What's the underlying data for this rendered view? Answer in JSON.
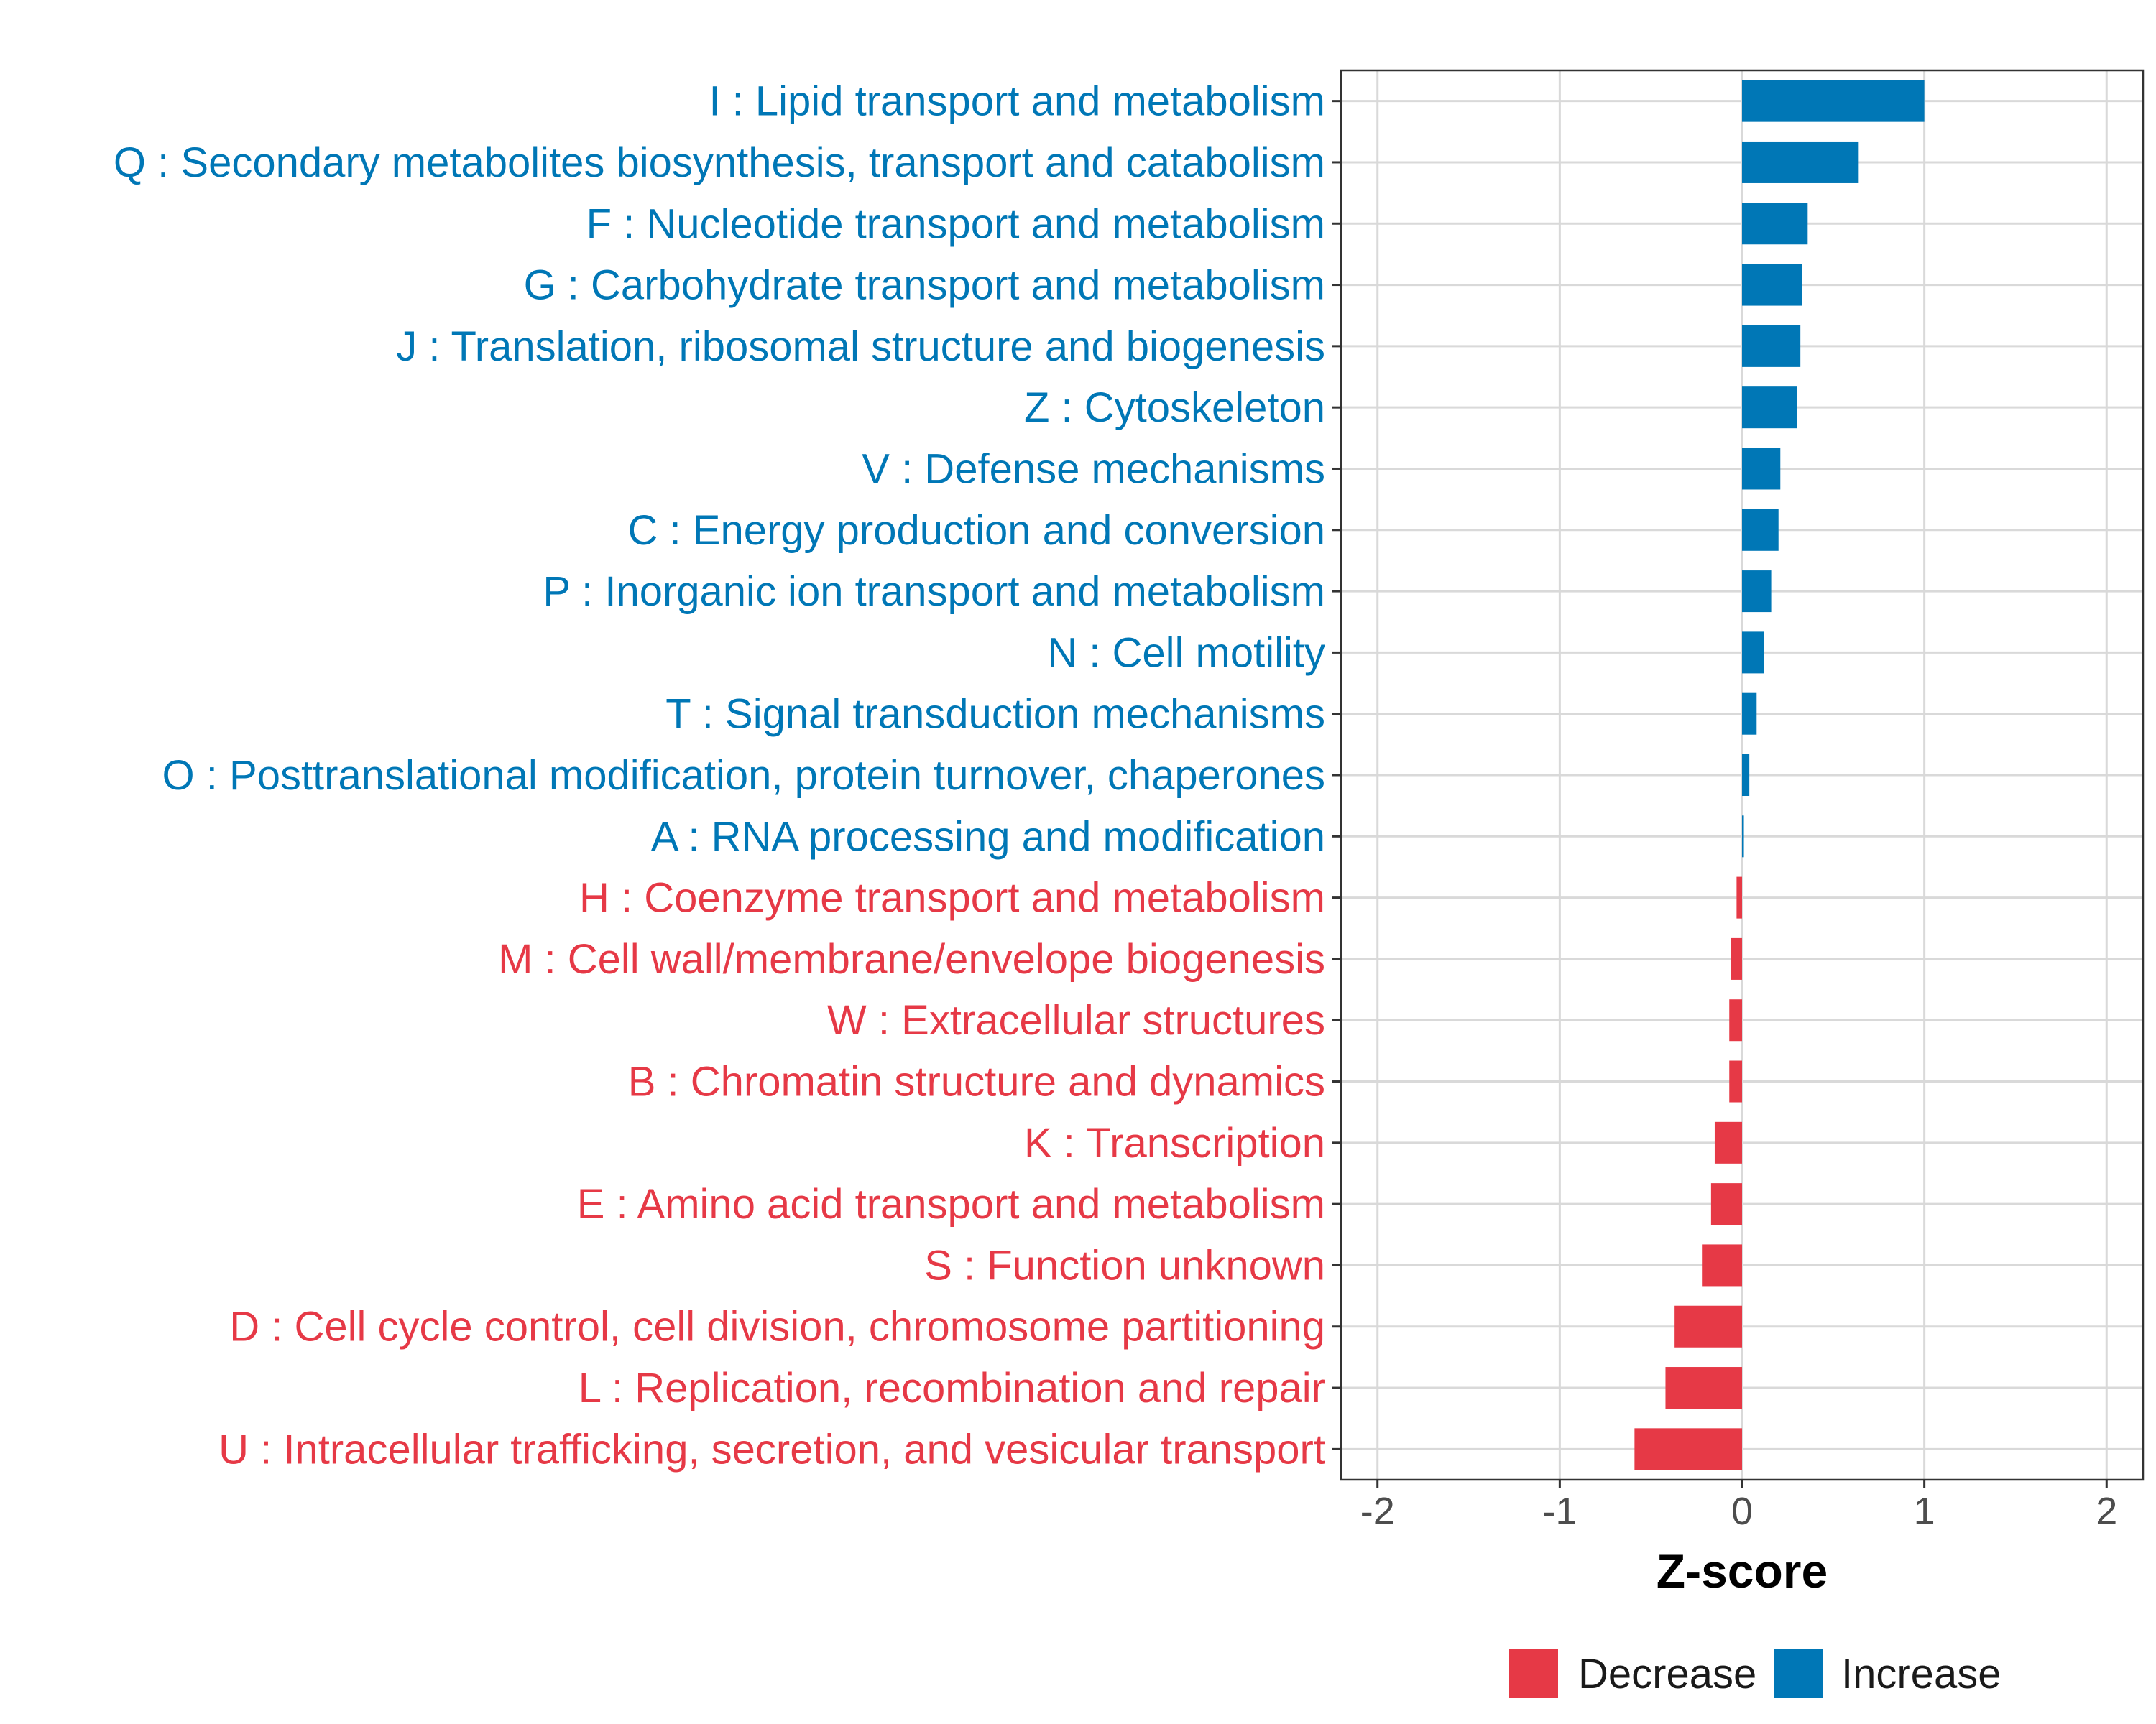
{
  "chart_data": {
    "type": "bar",
    "orientation": "horizontal",
    "xlabel": "Z-score",
    "xlim": [
      -2.2,
      2.2
    ],
    "xticks": [
      -2,
      -1,
      0,
      1,
      2
    ],
    "grid": true,
    "colors": {
      "Decrease": "#E63946",
      "Increase": "#0077B6"
    },
    "categories": [
      {
        "label": "I : Lipid transport and metabolism",
        "value": 1.0,
        "group": "Increase"
      },
      {
        "label": "Q : Secondary metabolites biosynthesis, transport and catabolism",
        "value": 0.64,
        "group": "Increase"
      },
      {
        "label": "F : Nucleotide transport and metabolism",
        "value": 0.36,
        "group": "Increase"
      },
      {
        "label": "G : Carbohydrate transport and metabolism",
        "value": 0.33,
        "group": "Increase"
      },
      {
        "label": "J : Translation, ribosomal structure and biogenesis",
        "value": 0.32,
        "group": "Increase"
      },
      {
        "label": "Z : Cytoskeleton",
        "value": 0.3,
        "group": "Increase"
      },
      {
        "label": "V : Defense mechanisms",
        "value": 0.21,
        "group": "Increase"
      },
      {
        "label": "C : Energy production and conversion",
        "value": 0.2,
        "group": "Increase"
      },
      {
        "label": "P : Inorganic ion transport and metabolism",
        "value": 0.16,
        "group": "Increase"
      },
      {
        "label": "N : Cell motility",
        "value": 0.12,
        "group": "Increase"
      },
      {
        "label": "T : Signal transduction mechanisms",
        "value": 0.08,
        "group": "Increase"
      },
      {
        "label": "O : Posttranslational modification, protein turnover, chaperones",
        "value": 0.04,
        "group": "Increase"
      },
      {
        "label": "A : RNA processing and modification",
        "value": 0.01,
        "group": "Increase"
      },
      {
        "label": "H : Coenzyme transport and metabolism",
        "value": -0.03,
        "group": "Decrease"
      },
      {
        "label": "M : Cell wall/membrane/envelope biogenesis",
        "value": -0.06,
        "group": "Decrease"
      },
      {
        "label": "W : Extracellular structures",
        "value": -0.07,
        "group": "Decrease"
      },
      {
        "label": "B : Chromatin structure and dynamics",
        "value": -0.07,
        "group": "Decrease"
      },
      {
        "label": "K : Transcription",
        "value": -0.15,
        "group": "Decrease"
      },
      {
        "label": "E : Amino acid transport and metabolism",
        "value": -0.17,
        "group": "Decrease"
      },
      {
        "label": "S : Function unknown",
        "value": -0.22,
        "group": "Decrease"
      },
      {
        "label": "D : Cell cycle control, cell division, chromosome partitioning",
        "value": -0.37,
        "group": "Decrease"
      },
      {
        "label": "L : Replication, recombination and repair",
        "value": -0.42,
        "group": "Decrease"
      },
      {
        "label": "U : Intracellular trafficking, secretion, and vesicular transport",
        "value": -0.59,
        "group": "Decrease"
      }
    ],
    "legend": {
      "placement": "bottom",
      "entries": [
        "Decrease",
        "Increase"
      ]
    }
  }
}
